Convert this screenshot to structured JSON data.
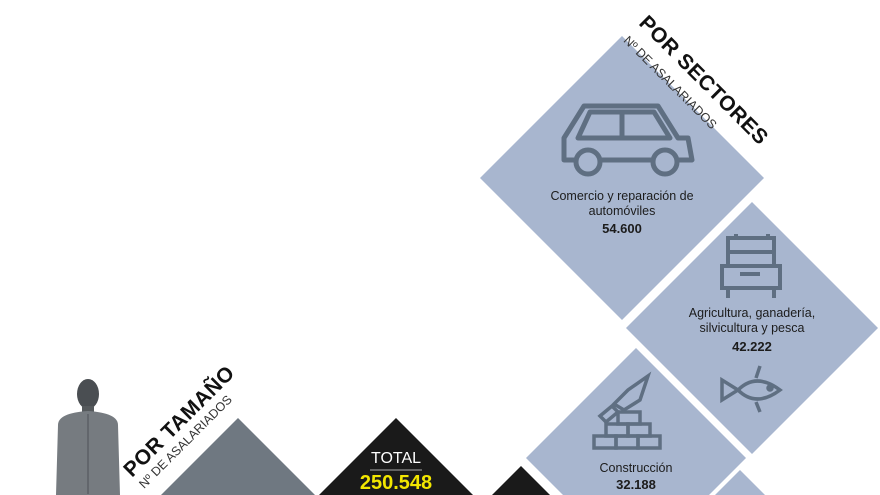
{
  "sectores": {
    "title": "POR SECTORES",
    "subtitle": "Nº DE ASALARIADOS",
    "items": [
      {
        "label": "Comercio y reparación de automóviles",
        "value": "54.600",
        "icon": "car-icon"
      },
      {
        "label": "Agricultura, ganadería, silvicultura y pesca",
        "value": "42.222",
        "icon": "tractor-icon"
      },
      {
        "label": "Construcción",
        "value": "32.188",
        "icon": "bricks-trowel-icon"
      }
    ]
  },
  "tamano": {
    "title": "POR TAMAÑO",
    "subtitle": "Nº DE ASALARIADOS"
  },
  "total": {
    "label": "TOTAL",
    "value": "250.548"
  },
  "colors": {
    "sector": "#a8b6cf",
    "icon": "#5f6f82",
    "size": "#6f7881",
    "total": "#1a1a1a",
    "total_value": "#f2e600"
  }
}
